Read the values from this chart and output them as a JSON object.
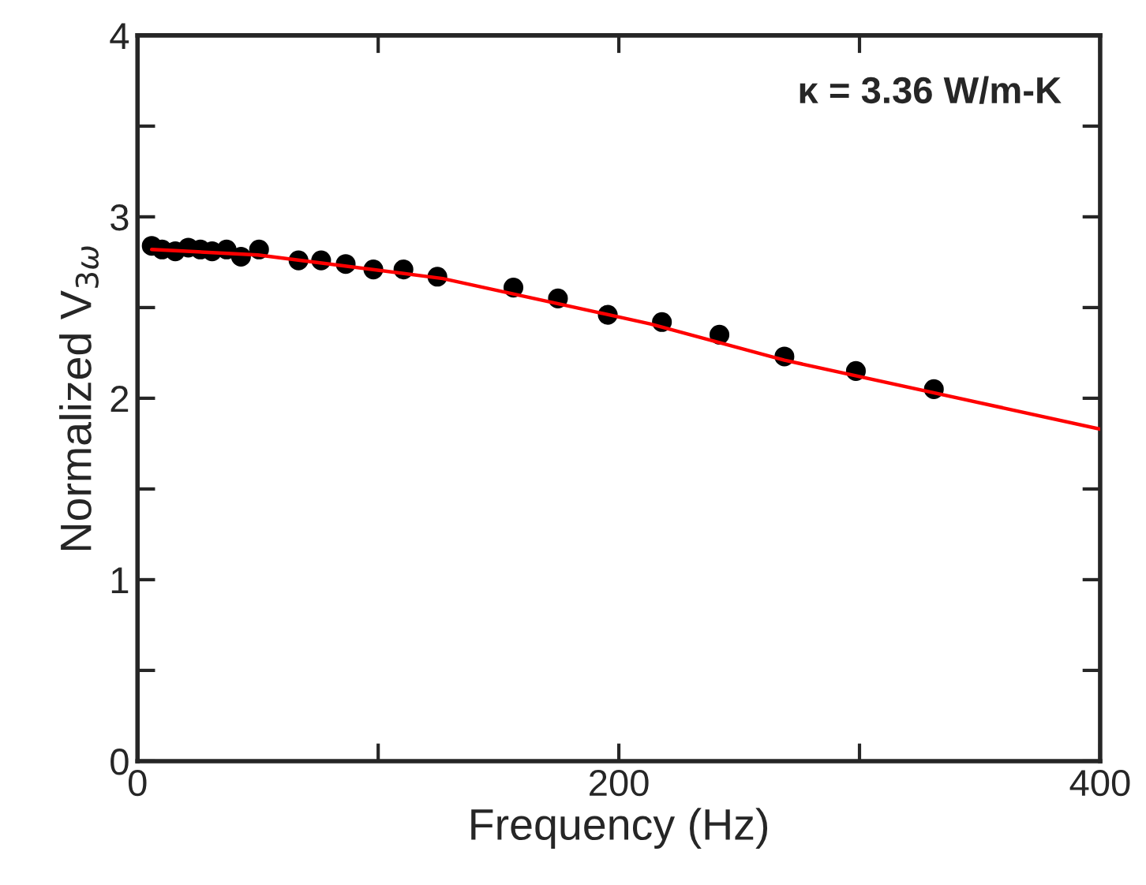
{
  "chart_data": {
    "type": "scatter",
    "xlabel": "Frequency (Hz)",
    "ylabel": "Normalized V$_{3ω}$",
    "annotations": [
      "κ = 3.36 W/m-K"
    ],
    "xlim": [
      0,
      400
    ],
    "ylim": [
      0,
      4
    ],
    "xticks": [
      0,
      {
        "value": 100,
        "label": null
      },
      200,
      {
        "value": 300,
        "label": null
      },
      400
    ],
    "yticks": [
      0,
      {
        "value": 0.5,
        "label": null
      },
      1,
      {
        "value": 1.5,
        "label": null
      },
      2,
      {
        "value": 2.5,
        "label": null
      },
      3,
      {
        "value": 3.5,
        "label": null
      },
      4
    ],
    "grid": false,
    "legend": false,
    "series": [
      {
        "marker": "circle",
        "color": "#000000",
        "x": [
          5.9,
          10.2,
          15.7,
          21.1,
          26.1,
          31,
          37,
          43,
          50.5,
          66.9,
          76.3,
          86.5,
          98,
          110.5,
          124.6,
          156.2,
          174.7,
          195.4,
          217.9,
          241.8,
          268.8,
          298.5,
          330.9
        ],
        "values": [
          2.84,
          2.82,
          2.81,
          2.83,
          2.82,
          2.81,
          2.82,
          2.78,
          2.82,
          2.76,
          2.76,
          2.74,
          2.71,
          2.71,
          2.67,
          2.61,
          2.55,
          2.46,
          2.42,
          2.35,
          2.23,
          2.15,
          2.05
        ]
      },
      {
        "type": "line",
        "color": "#ff0000",
        "x": [
          5.9,
          50,
          126.8,
          213,
          268.8,
          400
        ],
        "values": [
          2.82,
          2.79,
          2.66,
          2.41,
          2.21,
          1.83
        ]
      }
    ]
  }
}
